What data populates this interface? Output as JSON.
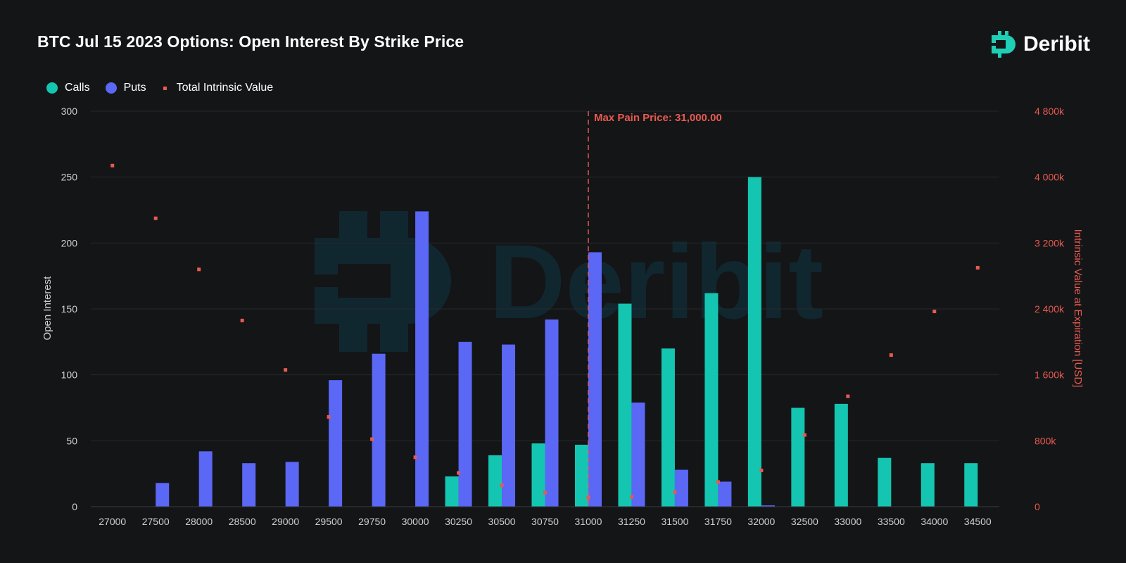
{
  "title": "BTC Jul 15 2023 Options: Open Interest By Strike Price",
  "brand": {
    "name": "Deribit",
    "accent": "#1fcfb5"
  },
  "legend": [
    {
      "label": "Calls",
      "color": "#14c6b1"
    },
    {
      "label": "Puts",
      "color": "#5b67f5"
    },
    {
      "label": "Total Intrinsic Value",
      "color": "#e85a50"
    }
  ],
  "chart_data": {
    "type": "bar",
    "title": "BTC Jul 15 2023 Options: Open Interest By Strike Price",
    "xlabel": "",
    "ylabel": "Open Interest",
    "y2label": "Intrinsic Value at Expiration [USD]",
    "ylim": [
      0,
      300
    ],
    "y2lim": [
      0,
      4800000
    ],
    "yticks": [
      "0",
      "50",
      "100",
      "150",
      "200",
      "250",
      "300"
    ],
    "y2ticks": [
      "0",
      "800k",
      "1 600k",
      "2 400k",
      "3 200k",
      "4 000k",
      "4 800k"
    ],
    "grid": true,
    "legend_position": "top-left",
    "categories": [
      "27000",
      "27500",
      "28000",
      "28500",
      "29000",
      "29500",
      "29750",
      "30000",
      "30250",
      "30500",
      "30750",
      "31000",
      "31250",
      "31500",
      "31750",
      "32000",
      "32500",
      "33000",
      "33500",
      "34000",
      "34500"
    ],
    "series": [
      {
        "name": "Calls",
        "axis": "left",
        "values": [
          0,
          0,
          0,
          0,
          0,
          0,
          0,
          0,
          23,
          39,
          48,
          47,
          154,
          120,
          162,
          250,
          75,
          78,
          37,
          33,
          33
        ]
      },
      {
        "name": "Puts",
        "axis": "left",
        "values": [
          0,
          18,
          42,
          33,
          34,
          96,
          116,
          224,
          125,
          123,
          142,
          193,
          79,
          28,
          19,
          1,
          0,
          0,
          0,
          0,
          0
        ]
      },
      {
        "name": "Total Intrinsic Value",
        "axis": "right",
        "values": [
          4140000,
          3500000,
          2880000,
          2260000,
          1660000,
          1090000,
          820000,
          600000,
          410000,
          260000,
          170000,
          110000,
          120000,
          180000,
          300000,
          440000,
          870000,
          1340000,
          1840000,
          2370000,
          2900000
        ]
      }
    ],
    "annotation": {
      "label": "Max Pain Price: 31,000.00",
      "category": "31000"
    }
  }
}
